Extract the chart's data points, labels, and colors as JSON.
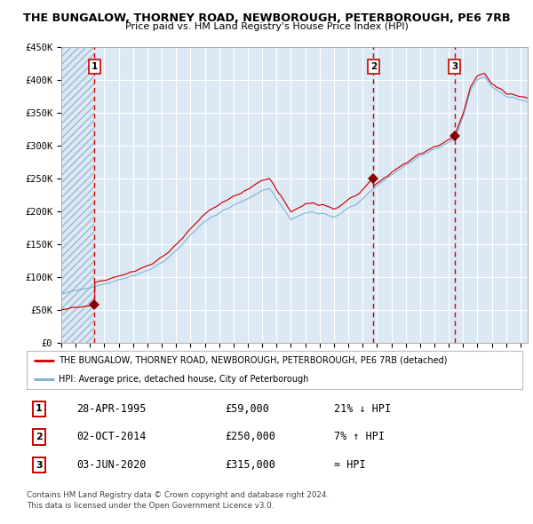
{
  "title": "THE BUNGALOW, THORNEY ROAD, NEWBOROUGH, PETERBOROUGH, PE6 7RB",
  "subtitle": "Price paid vs. HM Land Registry's House Price Index (HPI)",
  "bg_color": "#dce9f5",
  "red_line_color": "#cc0000",
  "blue_line_color": "#7ab0d4",
  "sale_marker_color": "#880000",
  "vline_color": "#cc0000",
  "sales": [
    {
      "date_num": 1995.32,
      "price": 59000,
      "label": "1",
      "row": "28-APR-1995",
      "price_str": "£59,000",
      "hpi_str": "21% ↓ HPI"
    },
    {
      "date_num": 2014.75,
      "price": 250000,
      "label": "2",
      "row": "02-OCT-2014",
      "price_str": "£250,000",
      "hpi_str": "7% ↑ HPI"
    },
    {
      "date_num": 2020.42,
      "price": 315000,
      "label": "3",
      "row": "03-JUN-2020",
      "price_str": "£315,000",
      "hpi_str": "≈ HPI"
    }
  ],
  "xmin": 1993.0,
  "xmax": 2025.5,
  "ymin": 0,
  "ymax": 450000,
  "yticks": [
    0,
    50000,
    100000,
    150000,
    200000,
    250000,
    300000,
    350000,
    400000,
    450000
  ],
  "ytick_labels": [
    "£0",
    "£50K",
    "£100K",
    "£150K",
    "£200K",
    "£250K",
    "£300K",
    "£350K",
    "£400K",
    "£450K"
  ],
  "xticks": [
    1993,
    1994,
    1995,
    1996,
    1997,
    1998,
    1999,
    2000,
    2001,
    2002,
    2003,
    2004,
    2005,
    2006,
    2007,
    2008,
    2009,
    2010,
    2011,
    2012,
    2013,
    2014,
    2015,
    2016,
    2017,
    2018,
    2019,
    2020,
    2021,
    2022,
    2023,
    2024,
    2025
  ],
  "legend_entries": [
    "THE BUNGALOW, THORNEY ROAD, NEWBOROUGH, PETERBOROUGH, PE6 7RB (detached)",
    "HPI: Average price, detached house, City of Peterborough"
  ],
  "footer_line1": "Contains HM Land Registry data © Crown copyright and database right 2024.",
  "footer_line2": "This data is licensed under the Open Government Licence v3.0."
}
